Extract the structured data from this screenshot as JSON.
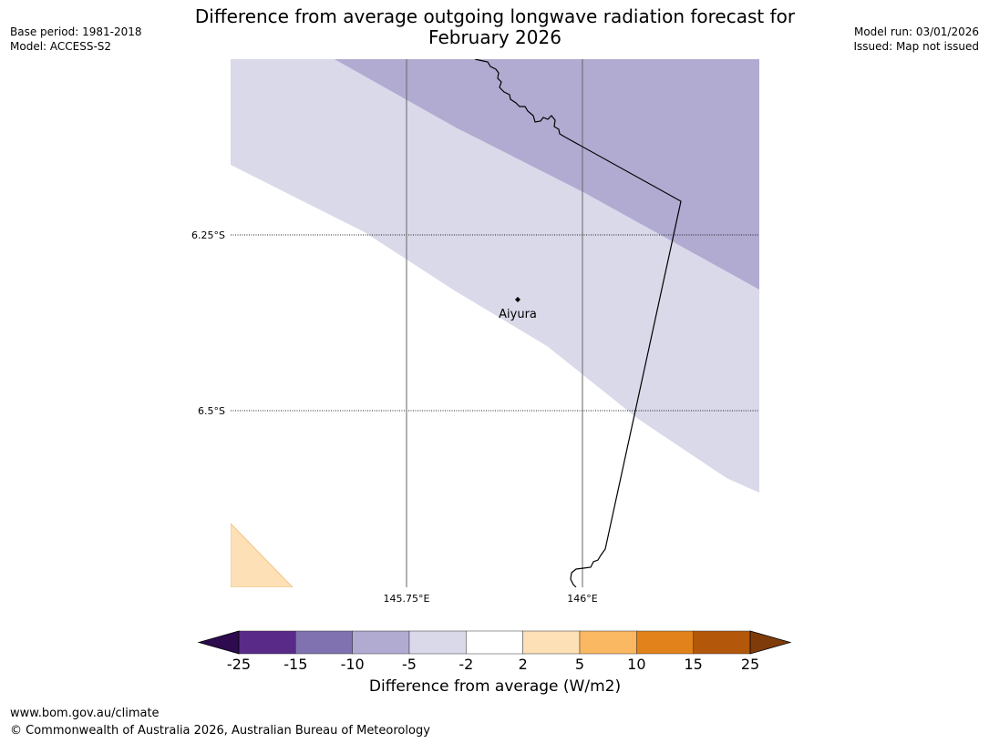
{
  "header": {
    "base_period": "Base period: 1981-2018",
    "model": "Model: ACCESS-S2",
    "model_run": "Model run: 03/01/2026",
    "issued": "Issued: Map not issued"
  },
  "title_line1": "Difference from average outgoing longwave radiation forecast for",
  "title_line2": "February 2026",
  "map": {
    "lat_labels": [
      "6.25°S",
      "6.5°S"
    ],
    "lon_labels": [
      "145.75°E",
      "146°E"
    ],
    "place": {
      "name": "Aiyura",
      "marker": "location-dot-icon"
    },
    "region_colors": {
      "dark_band": "#b1abd2",
      "light_band": "#d9d9ea",
      "positive_corner": "#fde0b5",
      "boundary": "#000000"
    }
  },
  "colorbar": {
    "ticks": [
      "-25",
      "-15",
      "-10",
      "-5",
      "-2",
      "2",
      "5",
      "10",
      "15",
      "25"
    ],
    "segment_colors": [
      "#5a2a89",
      "#8072b0",
      "#b1abd2",
      "#d9d9ea",
      "#ffffff",
      "#fde0b5",
      "#fbb862",
      "#e1821a",
      "#b3570a"
    ],
    "min_extend_color": "#2d0b4e",
    "max_extend_color": "#7f3c0a",
    "label": "Difference from average (W/m2)"
  },
  "footer": {
    "url": "www.bom.gov.au/climate",
    "copyright": "© Commonwealth of Australia 2026, Australian Bureau of Meteorology"
  }
}
